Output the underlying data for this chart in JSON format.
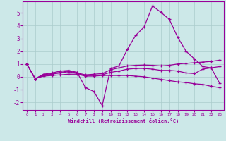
{
  "xlabel": "Windchill (Refroidissement éolien,°C)",
  "background_color": "#cce8e8",
  "line_color": "#990099",
  "grid_color": "#aacccc",
  "xlim": [
    -0.5,
    23.5
  ],
  "ylim": [
    -2.6,
    5.9
  ],
  "x": [
    0,
    1,
    2,
    3,
    4,
    5,
    6,
    7,
    8,
    9,
    10,
    11,
    12,
    13,
    14,
    15,
    16,
    17,
    18,
    19,
    20,
    21,
    22,
    23
  ],
  "series": [
    [
      1.0,
      -0.15,
      0.2,
      0.3,
      0.45,
      0.5,
      0.35,
      -0.85,
      -1.15,
      -2.25,
      0.65,
      0.85,
      2.15,
      3.25,
      3.9,
      5.55,
      5.05,
      4.5,
      3.1,
      2.0,
      1.4,
      0.8,
      0.7,
      -0.5
    ],
    [
      1.0,
      -0.15,
      0.15,
      0.25,
      0.35,
      0.45,
      0.3,
      0.15,
      0.2,
      0.25,
      0.55,
      0.7,
      0.85,
      0.9,
      0.92,
      0.9,
      0.85,
      0.9,
      1.0,
      1.05,
      1.1,
      1.15,
      1.2,
      1.3
    ],
    [
      1.0,
      -0.15,
      0.1,
      0.2,
      0.3,
      0.4,
      0.25,
      0.1,
      0.1,
      0.15,
      0.35,
      0.45,
      0.6,
      0.65,
      0.65,
      0.6,
      0.5,
      0.5,
      0.45,
      0.3,
      0.25,
      0.6,
      0.7,
      0.8
    ],
    [
      1.0,
      -0.15,
      0.05,
      0.1,
      0.15,
      0.2,
      0.2,
      0.05,
      0.05,
      0.1,
      0.1,
      0.1,
      0.1,
      0.05,
      0.0,
      -0.1,
      -0.2,
      -0.3,
      -0.4,
      -0.45,
      -0.55,
      -0.6,
      -0.75,
      -0.85
    ]
  ]
}
